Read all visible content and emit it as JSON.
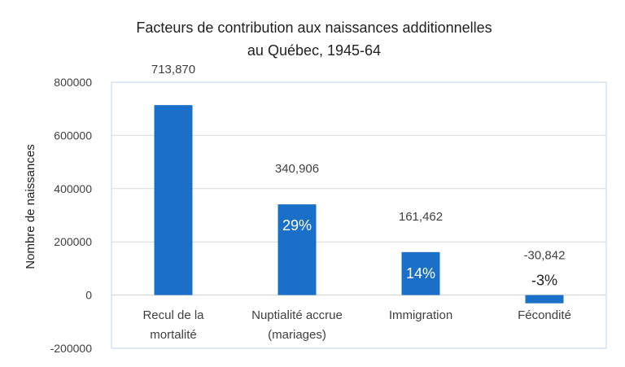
{
  "chart_data": {
    "type": "bar",
    "title_lines": [
      "Facteurs de contribution aux naissances additionnelles",
      "au Québec, 1945-64"
    ],
    "ylabel": "Nombre de naissances",
    "categories": [
      [
        "Recul de la",
        "mortalité"
      ],
      [
        "Nuptialité accrue",
        "(mariages)"
      ],
      [
        "Immigration"
      ],
      [
        "Fécondité"
      ]
    ],
    "values": [
      713870,
      340906,
      161462,
      -30842
    ],
    "value_labels": [
      "713,870",
      "340,906",
      "161,462",
      "-30,842"
    ],
    "percent_labels": [
      "",
      "29%",
      "14%",
      "-3%"
    ],
    "ylim": [
      -200000,
      800000
    ],
    "yticks": [
      -200000,
      0,
      200000,
      400000,
      600000,
      800000
    ],
    "ytick_labels": [
      "-200000",
      "0",
      "200000",
      "400000",
      "600000",
      "800000"
    ],
    "grid": true,
    "legend": "none",
    "bar_color": "#1a70c8",
    "grid_color": "#d9d9d9",
    "axis_color": "#bfd5ee"
  }
}
